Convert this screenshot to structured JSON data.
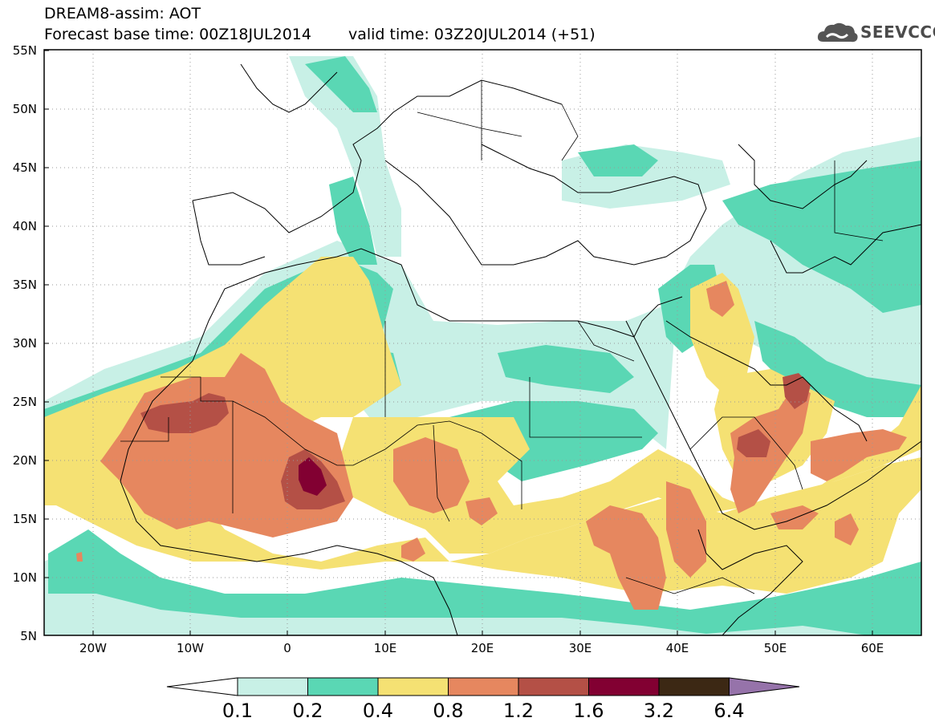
{
  "title": {
    "line1": "DREAM8-assim: AOT",
    "base_time": "Forecast base time: 00Z18JUL2014",
    "valid_time": "valid time: 03Z20JUL2014 (+51)"
  },
  "logo": {
    "text": "SEEVCCC",
    "icon": "cloud-icon"
  },
  "map": {
    "lon_range": [
      -25,
      65
    ],
    "lat_range": [
      5,
      55
    ],
    "lat_ticks": [
      {
        "value": 55,
        "label": "55N"
      },
      {
        "value": 50,
        "label": "50N"
      },
      {
        "value": 45,
        "label": "45N"
      },
      {
        "value": 40,
        "label": "40N"
      },
      {
        "value": 35,
        "label": "35N"
      },
      {
        "value": 30,
        "label": "30N"
      },
      {
        "value": 25,
        "label": "25N"
      },
      {
        "value": 20,
        "label": "20N"
      },
      {
        "value": 15,
        "label": "15N"
      },
      {
        "value": 10,
        "label": "10N"
      },
      {
        "value": 5,
        "label": "5N"
      }
    ],
    "lon_ticks": [
      {
        "value": -20,
        "label": "20W"
      },
      {
        "value": -10,
        "label": "10W"
      },
      {
        "value": 0,
        "label": "0"
      },
      {
        "value": 10,
        "label": "10E"
      },
      {
        "value": 20,
        "label": "20E"
      },
      {
        "value": 30,
        "label": "30E"
      },
      {
        "value": 40,
        "label": "40E"
      },
      {
        "value": 50,
        "label": "50E"
      },
      {
        "value": 60,
        "label": "60E"
      }
    ],
    "grid": "dotted"
  },
  "colorbar": {
    "levels": [
      "0.1",
      "0.2",
      "0.4",
      "0.8",
      "1.2",
      "1.6",
      "3.2",
      "6.4"
    ],
    "colors": [
      "#ffffff",
      "#c8f0e6",
      "#5ad7b4",
      "#f5e173",
      "#e6875f",
      "#b45046",
      "#820032",
      "#3c2814",
      "#9673aa"
    ]
  }
}
